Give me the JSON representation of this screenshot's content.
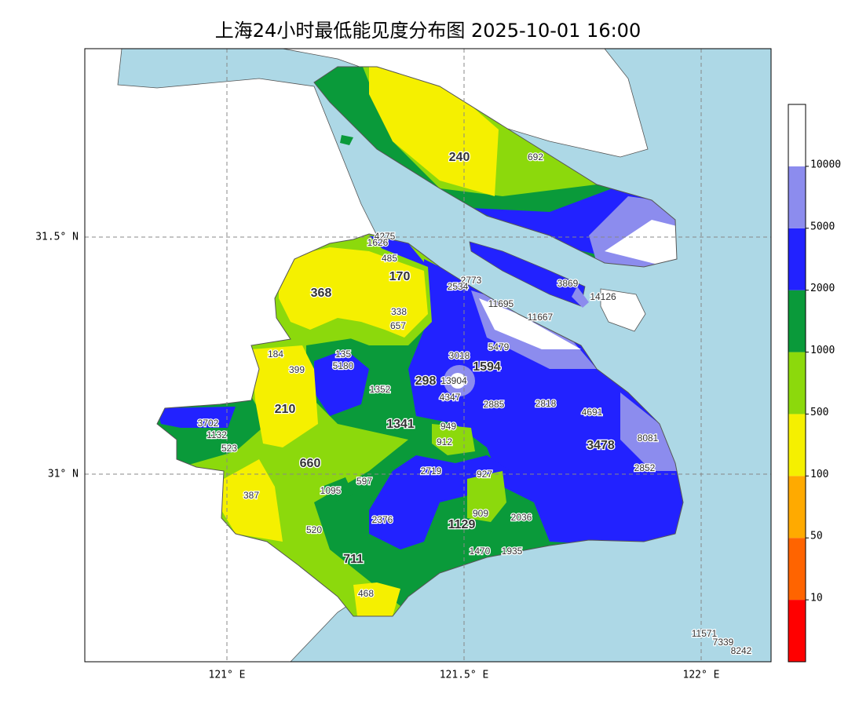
{
  "title": "上海24小时最低能见度分布图 2025-10-01 16:00",
  "axes": {
    "lon_labels": [
      "121° E",
      "121.5° E",
      "122° E"
    ],
    "lat_labels": [
      "31.5° N",
      "31° N"
    ]
  },
  "colorbar": {
    "ticks": [
      10,
      50,
      100,
      500,
      1000,
      2000,
      5000,
      10000
    ],
    "colors": [
      "#ff0000",
      "#ff6400",
      "#ffaa00",
      "#f5f000",
      "#8cd90c",
      "#0a9a3a",
      "#2222ff",
      "#8c8cee",
      "#ffffff"
    ]
  },
  "stations": [
    240,
    692,
    4275,
    1626,
    485,
    170,
    2773,
    2534,
    3869,
    14126,
    368,
    11695,
    338,
    11667,
    657,
    5479,
    135,
    184,
    3018,
    1594,
    5180,
    399,
    298,
    13904,
    1352,
    4347,
    2885,
    2818,
    4691,
    210,
    3702,
    1341,
    949,
    1132,
    523,
    912,
    8081,
    3478,
    660,
    2719,
    927,
    2852,
    597,
    1095,
    387,
    909,
    2376,
    2036,
    1129,
    520,
    1470,
    1935,
    711,
    468,
    11571,
    7339,
    8242
  ]
}
